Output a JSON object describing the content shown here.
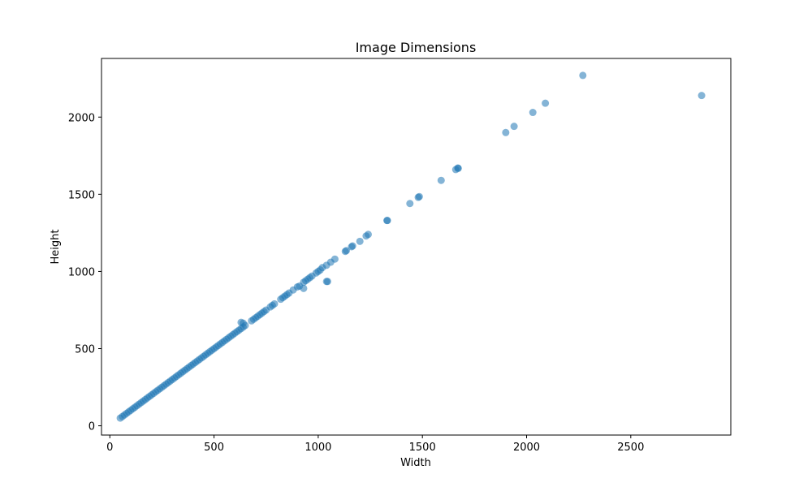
{
  "chart_data": {
    "type": "scatter",
    "title": "Image Dimensions",
    "xlabel": "Width",
    "ylabel": "Height",
    "xlim": [
      -40,
      2980
    ],
    "ylim": [
      -60,
      2380
    ],
    "xticks": [
      0,
      500,
      1000,
      1500,
      2000,
      2500
    ],
    "yticks": [
      0,
      500,
      1000,
      1500,
      2000
    ],
    "grid": false,
    "legend": "none",
    "marker_color": "#1f77b4",
    "marker_alpha": 0.55,
    "series": [
      {
        "points": [
          [
            50,
            50
          ],
          [
            60,
            60
          ],
          [
            70,
            70
          ],
          [
            80,
            80
          ],
          [
            90,
            90
          ],
          [
            100,
            100
          ],
          [
            110,
            110
          ],
          [
            120,
            120
          ],
          [
            130,
            130
          ],
          [
            140,
            140
          ],
          [
            150,
            150
          ],
          [
            160,
            160
          ],
          [
            170,
            170
          ],
          [
            180,
            180
          ],
          [
            190,
            190
          ],
          [
            200,
            200
          ],
          [
            210,
            210
          ],
          [
            220,
            220
          ],
          [
            230,
            230
          ],
          [
            240,
            240
          ],
          [
            250,
            250
          ],
          [
            260,
            260
          ],
          [
            270,
            270
          ],
          [
            280,
            280
          ],
          [
            290,
            290
          ],
          [
            300,
            300
          ],
          [
            310,
            310
          ],
          [
            320,
            320
          ],
          [
            330,
            330
          ],
          [
            340,
            340
          ],
          [
            350,
            350
          ],
          [
            360,
            360
          ],
          [
            370,
            370
          ],
          [
            380,
            380
          ],
          [
            390,
            390
          ],
          [
            400,
            400
          ],
          [
            410,
            410
          ],
          [
            420,
            420
          ],
          [
            430,
            430
          ],
          [
            440,
            440
          ],
          [
            450,
            450
          ],
          [
            460,
            460
          ],
          [
            470,
            470
          ],
          [
            480,
            480
          ],
          [
            490,
            490
          ],
          [
            500,
            500
          ],
          [
            510,
            510
          ],
          [
            520,
            520
          ],
          [
            530,
            530
          ],
          [
            540,
            540
          ],
          [
            550,
            550
          ],
          [
            560,
            560
          ],
          [
            570,
            570
          ],
          [
            580,
            580
          ],
          [
            590,
            590
          ],
          [
            600,
            600
          ],
          [
            610,
            610
          ],
          [
            620,
            620
          ],
          [
            630,
            630
          ],
          [
            640,
            640
          ],
          [
            650,
            650
          ],
          [
            630,
            670
          ],
          [
            640,
            665
          ],
          [
            680,
            680
          ],
          [
            690,
            690
          ],
          [
            700,
            700
          ],
          [
            710,
            710
          ],
          [
            720,
            720
          ],
          [
            730,
            730
          ],
          [
            740,
            740
          ],
          [
            750,
            750
          ],
          [
            770,
            770
          ],
          [
            780,
            780
          ],
          [
            790,
            790
          ],
          [
            820,
            820
          ],
          [
            830,
            830
          ],
          [
            840,
            840
          ],
          [
            850,
            850
          ],
          [
            860,
            860
          ],
          [
            880,
            880
          ],
          [
            900,
            900
          ],
          [
            910,
            905
          ],
          [
            930,
            930
          ],
          [
            940,
            940
          ],
          [
            950,
            950
          ],
          [
            960,
            960
          ],
          [
            970,
            970
          ],
          [
            990,
            990
          ],
          [
            1000,
            1000
          ],
          [
            1010,
            1010
          ],
          [
            1020,
            1025
          ],
          [
            1040,
            1040
          ],
          [
            1060,
            1060
          ],
          [
            1080,
            1080
          ],
          [
            930,
            890
          ],
          [
            1040,
            935
          ],
          [
            1045,
            935
          ],
          [
            1130,
            1130
          ],
          [
            1135,
            1135
          ],
          [
            1160,
            1160
          ],
          [
            1165,
            1165
          ],
          [
            1200,
            1195
          ],
          [
            1230,
            1230
          ],
          [
            1240,
            1240
          ],
          [
            1330,
            1330
          ],
          [
            1332,
            1330
          ],
          [
            1440,
            1440
          ],
          [
            1480,
            1480
          ],
          [
            1485,
            1485
          ],
          [
            1590,
            1590
          ],
          [
            1660,
            1660
          ],
          [
            1670,
            1670
          ],
          [
            1672,
            1668
          ],
          [
            1900,
            1900
          ],
          [
            1940,
            1940
          ],
          [
            2030,
            2030
          ],
          [
            2090,
            2090
          ],
          [
            2270,
            2270
          ],
          [
            2840,
            2140
          ]
        ]
      }
    ]
  }
}
